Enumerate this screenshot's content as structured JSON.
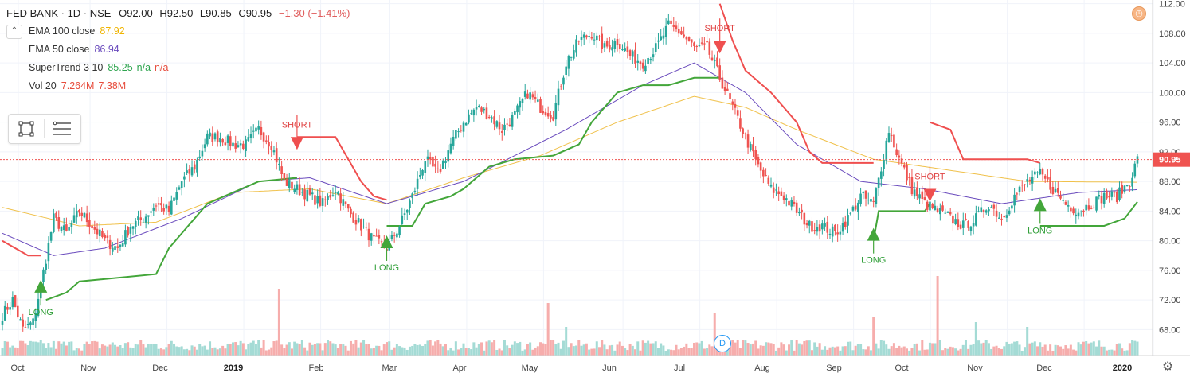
{
  "header": {
    "symbol": "FED BANK · 1D · NSE",
    "open": "O92.00",
    "high": "H92.50",
    "low": "L90.85",
    "close": "C90.95",
    "change": "−1.30 (−1.41%)"
  },
  "indicators": [
    {
      "name": "EMA 100 close",
      "value": "87.92",
      "color": "#f0b400"
    },
    {
      "name": "EMA 50 close",
      "value": "86.94",
      "color": "#6a4bbd"
    },
    {
      "name": "SuperTrend 3 10",
      "value": "85.25",
      "extra1": "n/a",
      "extra2": "n/a",
      "color": "#2ea44f",
      "extra_color": "#e74c3c"
    },
    {
      "name": "Vol 20",
      "value": "7.264M",
      "extra1": "7.38M",
      "color": "#e74c3c"
    }
  ],
  "badges": {
    "dividend": "D"
  },
  "chart_data": {
    "type": "candlestick",
    "title": "FED BANK · 1D · NSE",
    "x_labels": [
      "Oct",
      "Nov",
      "Dec",
      "2019",
      "Feb",
      "Mar",
      "Apr",
      "May",
      "Jun",
      "Jul",
      "Aug",
      "Sep",
      "Oct",
      "Nov",
      "Dec",
      "2020"
    ],
    "y_ticks": [
      68,
      72,
      76,
      80,
      84,
      88,
      92,
      96,
      100,
      104,
      108,
      112
    ],
    "y_tick_labels": [
      "68.00",
      "72.00",
      "76.00",
      "80.00",
      "84.00",
      "88.00",
      "92.00",
      "96.00",
      "100.00",
      "104.00",
      "108.00",
      "112.00"
    ],
    "ylim": [
      64.5,
      112.5
    ],
    "last_price": 90.95,
    "last_price_label": "90.95",
    "last_price_axis_label": "92.00",
    "price_anchors": [
      [
        0,
        70
      ],
      [
        4,
        72
      ],
      [
        8,
        68
      ],
      [
        12,
        69
      ],
      [
        15,
        74
      ],
      [
        20,
        83
      ],
      [
        25,
        81
      ],
      [
        30,
        84
      ],
      [
        35,
        82
      ],
      [
        40,
        80
      ],
      [
        45,
        79
      ],
      [
        50,
        82
      ],
      [
        55,
        83
      ],
      [
        60,
        85
      ],
      [
        65,
        84
      ],
      [
        70,
        88
      ],
      [
        75,
        90
      ],
      [
        80,
        94
      ],
      [
        85,
        94
      ],
      [
        90,
        93
      ],
      [
        95,
        93
      ],
      [
        100,
        95
      ],
      [
        105,
        93
      ],
      [
        110,
        88
      ],
      [
        115,
        87
      ],
      [
        120,
        86
      ],
      [
        125,
        85
      ],
      [
        130,
        87
      ],
      [
        135,
        84
      ],
      [
        140,
        82
      ],
      [
        145,
        80
      ],
      [
        150,
        79
      ],
      [
        155,
        82
      ],
      [
        160,
        86
      ],
      [
        165,
        91
      ],
      [
        170,
        89
      ],
      [
        175,
        93
      ],
      [
        180,
        96
      ],
      [
        185,
        98
      ],
      [
        190,
        97
      ],
      [
        195,
        95
      ],
      [
        200,
        97
      ],
      [
        205,
        100
      ],
      [
        210,
        98
      ],
      [
        215,
        97
      ],
      [
        220,
        104
      ],
      [
        225,
        107
      ],
      [
        230,
        108
      ],
      [
        235,
        106
      ],
      [
        240,
        107
      ],
      [
        245,
        105
      ],
      [
        250,
        104
      ],
      [
        255,
        106
      ],
      [
        260,
        109
      ],
      [
        265,
        108
      ],
      [
        270,
        106
      ],
      [
        275,
        106
      ],
      [
        280,
        102
      ],
      [
        285,
        98
      ],
      [
        290,
        94
      ],
      [
        295,
        90
      ],
      [
        300,
        87
      ],
      [
        305,
        86
      ],
      [
        310,
        84
      ],
      [
        315,
        82
      ],
      [
        320,
        82
      ],
      [
        325,
        81
      ],
      [
        330,
        83
      ],
      [
        335,
        86
      ],
      [
        340,
        85
      ],
      [
        343,
        90
      ],
      [
        346,
        95
      ],
      [
        350,
        91
      ],
      [
        355,
        87
      ],
      [
        360,
        85
      ],
      [
        365,
        84
      ],
      [
        370,
        83
      ],
      [
        375,
        82
      ],
      [
        380,
        83
      ],
      [
        385,
        85
      ],
      [
        390,
        83
      ],
      [
        395,
        86
      ],
      [
        400,
        88
      ],
      [
        405,
        89
      ],
      [
        410,
        87
      ],
      [
        415,
        85
      ],
      [
        420,
        84
      ],
      [
        425,
        85
      ],
      [
        430,
        86
      ],
      [
        435,
        86
      ],
      [
        440,
        88
      ],
      [
        443,
        91
      ]
    ],
    "ema100_anchors": [
      [
        0,
        84.5
      ],
      [
        30,
        82
      ],
      [
        60,
        82.5
      ],
      [
        90,
        86.5
      ],
      [
        120,
        87
      ],
      [
        150,
        85
      ],
      [
        180,
        88.5
      ],
      [
        210,
        91.5
      ],
      [
        240,
        96
      ],
      [
        270,
        99.5
      ],
      [
        290,
        98
      ],
      [
        310,
        95
      ],
      [
        340,
        91
      ],
      [
        370,
        89.5
      ],
      [
        400,
        88
      ],
      [
        443,
        87.9
      ]
    ],
    "ema50_anchors": [
      [
        0,
        81
      ],
      [
        20,
        78
      ],
      [
        40,
        79
      ],
      [
        70,
        83
      ],
      [
        100,
        88
      ],
      [
        120,
        88.5
      ],
      [
        150,
        85
      ],
      [
        180,
        88
      ],
      [
        220,
        95
      ],
      [
        250,
        101
      ],
      [
        270,
        104
      ],
      [
        290,
        100
      ],
      [
        310,
        93
      ],
      [
        335,
        88
      ],
      [
        360,
        87
      ],
      [
        390,
        85
      ],
      [
        420,
        86.5
      ],
      [
        443,
        86.9
      ]
    ],
    "supertrend_segments": [
      {
        "trend": "down",
        "points": [
          [
            0,
            80
          ],
          [
            5,
            79
          ],
          [
            10,
            78
          ],
          [
            15,
            78
          ]
        ]
      },
      {
        "trend": "up",
        "points": [
          [
            17,
            72
          ],
          [
            25,
            73
          ],
          [
            30,
            74.5
          ],
          [
            60,
            75.5
          ],
          [
            65,
            79
          ],
          [
            75,
            83
          ],
          [
            80,
            85
          ],
          [
            90,
            86.5
          ],
          [
            100,
            88
          ],
          [
            115,
            88.5
          ]
        ]
      },
      {
        "trend": "down",
        "points": [
          [
            115,
            94
          ],
          [
            130,
            94
          ],
          [
            135,
            91
          ],
          [
            140,
            88
          ],
          [
            145,
            86
          ],
          [
            150,
            85.5
          ]
        ]
      },
      {
        "trend": "up",
        "points": [
          [
            150,
            82
          ],
          [
            160,
            82
          ],
          [
            165,
            85
          ],
          [
            175,
            86
          ],
          [
            180,
            87
          ],
          [
            190,
            90
          ],
          [
            200,
            91
          ],
          [
            215,
            91.5
          ],
          [
            225,
            93
          ],
          [
            230,
            96
          ],
          [
            240,
            100
          ],
          [
            250,
            101
          ],
          [
            260,
            101
          ],
          [
            270,
            102
          ],
          [
            280,
            102
          ]
        ]
      },
      {
        "trend": "down",
        "points": [
          [
            280,
            112
          ],
          [
            285,
            107
          ],
          [
            290,
            103
          ],
          [
            300,
            100
          ],
          [
            310,
            96
          ],
          [
            315,
            92
          ],
          [
            320,
            90.5
          ],
          [
            340,
            90.5
          ]
        ]
      },
      {
        "trend": "up",
        "points": [
          [
            340,
            80
          ],
          [
            342,
            84
          ],
          [
            360,
            84
          ],
          [
            362,
            85
          ]
        ]
      },
      {
        "trend": "down",
        "points": [
          [
            362,
            96
          ],
          [
            370,
            95
          ],
          [
            375,
            91
          ],
          [
            400,
            91
          ],
          [
            405,
            90.5
          ]
        ]
      },
      {
        "trend": "up",
        "points": [
          [
            405,
            82
          ],
          [
            430,
            82
          ],
          [
            438,
            83
          ],
          [
            443,
            85.25
          ]
        ]
      }
    ],
    "signals": [
      {
        "type": "LONG",
        "x": 15,
        "price": 73
      },
      {
        "type": "SHORT",
        "x": 115,
        "price": 94
      },
      {
        "type": "LONG",
        "x": 150,
        "price": 79
      },
      {
        "type": "SHORT",
        "x": 280,
        "price": 107
      },
      {
        "type": "LONG",
        "x": 340,
        "price": 80
      },
      {
        "type": "SHORT",
        "x": 362,
        "price": 87
      },
      {
        "type": "LONG",
        "x": 405,
        "price": 84
      }
    ],
    "volume_spikes": [
      [
        108,
        7
      ],
      [
        213,
        5.5
      ],
      [
        220,
        3
      ],
      [
        278,
        4.5
      ],
      [
        340,
        4
      ],
      [
        365,
        8.5
      ],
      [
        380,
        3.5
      ],
      [
        400,
        3
      ]
    ],
    "series": [
      {
        "name": "EMA 100 close",
        "color": "#f0b400"
      },
      {
        "name": "EMA 50 close",
        "color": "#6a4bbd"
      },
      {
        "name": "SuperTrend 3 10",
        "color": "#2ea44f"
      },
      {
        "name": "Vol 20",
        "color": "#e74c3c"
      }
    ],
    "grid": true,
    "legend": "top-left",
    "candle_up_color": "#26a69a",
    "candle_down_color": "#ef5350"
  }
}
